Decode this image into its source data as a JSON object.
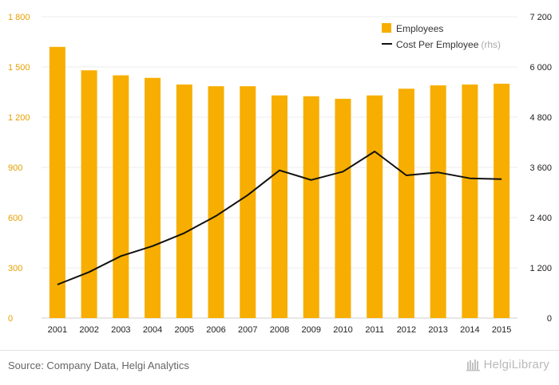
{
  "chart_data": {
    "type": "bar",
    "categories": [
      "2001",
      "2002",
      "2003",
      "2004",
      "2005",
      "2006",
      "2007",
      "2008",
      "2009",
      "2010",
      "2011",
      "2012",
      "2013",
      "2014",
      "2015"
    ],
    "series": [
      {
        "name": "Employees",
        "type": "bar",
        "axis": "left",
        "color": "#f7ae00",
        "values": [
          1620,
          1480,
          1450,
          1435,
          1395,
          1385,
          1385,
          1330,
          1325,
          1310,
          1330,
          1370,
          1390,
          1395,
          1400
        ]
      },
      {
        "name": "Cost Per Employee",
        "type": "line",
        "axis": "right",
        "color": "#111111",
        "values": [
          800,
          1100,
          1480,
          1720,
          2030,
          2440,
          2940,
          3530,
          3300,
          3500,
          3980,
          3410,
          3480,
          3340,
          3320
        ]
      }
    ],
    "legend": {
      "items": [
        "Employees",
        "Cost Per Employee"
      ],
      "rhs_note": "(rhs)",
      "placement": "top-right"
    },
    "y_left": {
      "ylim": [
        0,
        1800
      ],
      "ticks": [
        "0",
        "300",
        "600",
        "900",
        "1 200",
        "1 500",
        "1 800"
      ],
      "tick_color": "#e5a000"
    },
    "y_right": {
      "ylim": [
        0,
        7200
      ],
      "ticks": [
        "0",
        "1 200",
        "2 400",
        "3 600",
        "4 800",
        "6 000",
        "7 200"
      ]
    },
    "grid": true
  },
  "footer": {
    "source": "Source: Company Data, Helgi Analytics",
    "brand": "HelgiLibrary"
  }
}
